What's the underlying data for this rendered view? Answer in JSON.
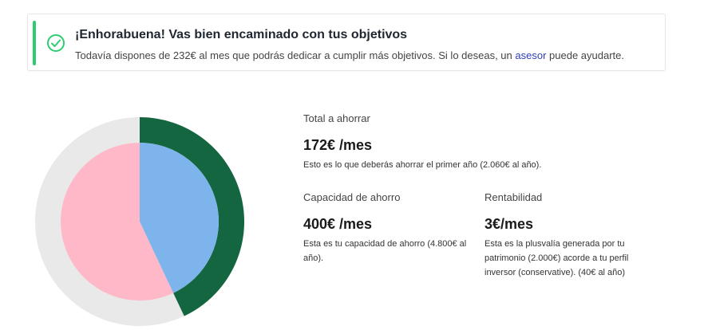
{
  "alert": {
    "title": "¡Enhorabuena! Vas bien encaminado con tus objetivos",
    "text_before": "Todavía dispones de 232€ al mes que podrás dedicar a cumplir más objetivos. Si lo deseas, un ",
    "link": "asesor",
    "text_after": " puede ayudarte.",
    "icon": "check-circle-icon",
    "accent_color": "#2ecc71"
  },
  "total": {
    "label": "Total a ahorrar",
    "value": "172€ /mes",
    "desc": "Esto es lo que deberás ahorrar el primer año (2.060€ al año)."
  },
  "capacity": {
    "label": "Capacidad de ahorro",
    "value": "400€ /mes",
    "desc": "Esta es tu capacidad de ahorro (4.800€ al año)."
  },
  "profit": {
    "label": "Rentabilidad",
    "value": "3€/mes",
    "desc": "Esta es la plusvalía generada por tu patrimonio (2.000€) acorde a tu perfil inversor (conservative). (40€ al año)"
  },
  "donut": {
    "outer_fraction": 0.43,
    "inner_fraction": 0.43,
    "colors": {
      "outer_filled": "#136640",
      "outer_track": "#e9e9e9",
      "inner_a": "#7eb4ec",
      "inner_b": "#ffb8c8"
    }
  }
}
